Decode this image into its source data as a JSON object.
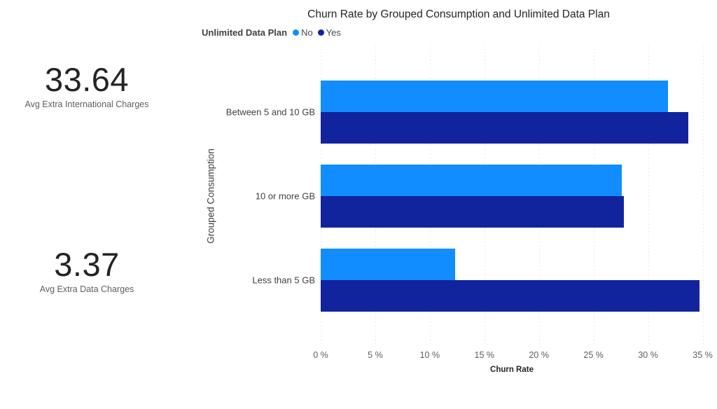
{
  "kpi_cards": [
    {
      "value": "33.64",
      "label": "Avg Extra International Charges"
    },
    {
      "value": "3.37",
      "label": "Avg Extra Data Charges"
    }
  ],
  "chart_data": {
    "type": "bar",
    "orientation": "horizontal",
    "title": "Churn Rate by Grouped Consumption and Unlimited Data Plan",
    "legend_title": "Unlimited Data Plan",
    "legend_position": "top-left",
    "categories": [
      "Between 5 and 10 GB",
      "10 or more GB",
      "Less than 5 GB"
    ],
    "series": [
      {
        "name": "No",
        "color": "#118DFF",
        "values": [
          31.8,
          27.6,
          12.3
        ]
      },
      {
        "name": "Yes",
        "color": "#12239E",
        "values": [
          33.7,
          27.8,
          34.7
        ]
      }
    ],
    "xlabel": "Churn Rate",
    "ylabel": "Grouped Consumption",
    "xlim": [
      0,
      35
    ],
    "xticks": [
      0,
      5,
      10,
      15,
      20,
      25,
      30,
      35
    ],
    "xtick_labels": [
      "0 %",
      "5 %",
      "10 %",
      "15 %",
      "20 %",
      "25 %",
      "30 %",
      "35 %"
    ],
    "grid": "vertical-dotted"
  },
  "colors": {
    "bar_no": "#118DFF",
    "bar_yes": "#12239E",
    "text_primary": "#252423",
    "text_secondary": "#605E5C",
    "gridline": "#D9D9D9",
    "background": "#FFFFFF"
  }
}
